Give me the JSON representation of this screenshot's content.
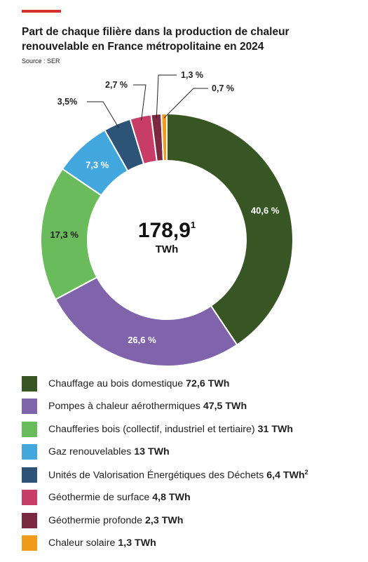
{
  "header": {
    "title_line1": "Part de chaque filière dans la production de chaleur",
    "title_line2": "renouvelable en France métropolitaine en 2024",
    "source": "Source : SER"
  },
  "chart_data": {
    "type": "pie",
    "style": "donut",
    "title": "Part de chaque filière dans la production de chaleur renouvelable en France métropolitaine en 2024",
    "center_value": "178,9",
    "center_sup": "1",
    "center_unit": "TWh",
    "start": "top, clockwise",
    "slices": [
      {
        "name": "Chauffage au bois domestique",
        "value_twh": "72,6 TWh",
        "sup": "",
        "percent": 40.6,
        "label": "40,6 %",
        "color": "#375623"
      },
      {
        "name": "Pompes à chaleur aérothermiques",
        "value_twh": "47,5 TWh",
        "sup": "",
        "percent": 26.6,
        "label": "26,6 %",
        "color": "#7f64ab"
      },
      {
        "name": "Chaufferies bois (collectif, industriel et tertiaire)",
        "value_twh": "31 TWh",
        "sup": "",
        "percent": 17.3,
        "label": "17,3 %",
        "color": "#6abb5b"
      },
      {
        "name": "Gaz renouvelables",
        "value_twh": "13 TWh",
        "sup": "",
        "percent": 7.3,
        "label": "7,3 %",
        "color": "#42a7dd"
      },
      {
        "name": "Unités de Valorisation Énergétiques des Déchets",
        "value_twh": "6,4 TWh",
        "sup": "2",
        "percent": 3.5,
        "label": "3,5%",
        "color": "#2d5476"
      },
      {
        "name": "Géothermie de surface",
        "value_twh": "4,8 TWh",
        "sup": "",
        "percent": 2.7,
        "label": "2,7 %",
        "color": "#c83c68"
      },
      {
        "name": "Géothermie profonde",
        "value_twh": "2,3 TWh",
        "sup": "",
        "percent": 1.3,
        "label": "1,3 %",
        "color": "#7b2840"
      },
      {
        "name": "Chaleur solaire",
        "value_twh": "1,3 TWh",
        "sup": "",
        "percent": 0.7,
        "label": "0,7 %",
        "color": "#f29a1c"
      }
    ]
  }
}
